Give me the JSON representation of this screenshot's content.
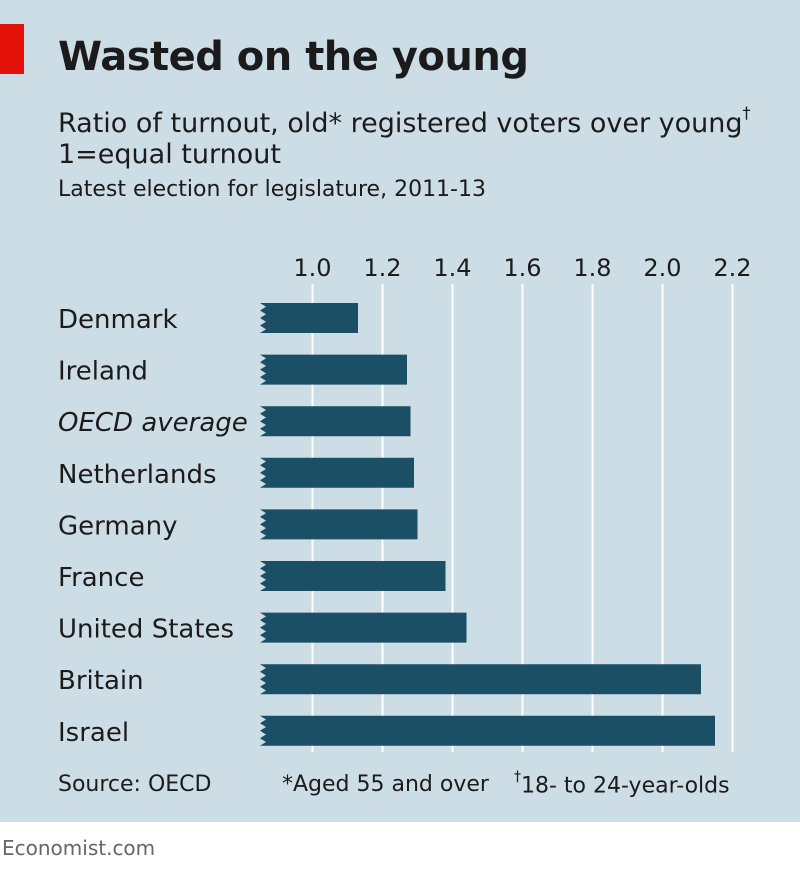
{
  "header": {
    "title": "Wasted on the young",
    "subtitle_line1": "Ratio of turnout, old* registered voters over young",
    "subtitle_dagger": "†",
    "subtitle_line2": "1=equal turnout",
    "subtitle_line3": "Latest election for legislature, 2011-13"
  },
  "footer": {
    "source": "Source: OECD",
    "note1": "*Aged 55 and over",
    "note2_dagger": "†",
    "note2": "18- to 24-year-olds"
  },
  "brand": "Economist.com",
  "colors": {
    "background": "#cddde6",
    "bar": "#1b4f66",
    "accent": "#e3120b",
    "grid": "#ffffff"
  },
  "chart_data": {
    "type": "bar",
    "orientation": "horizontal",
    "categories": [
      "Denmark",
      "Ireland",
      "OECD average",
      "Netherlands",
      "Germany",
      "France",
      "United States",
      "Britain",
      "Israel"
    ],
    "italic_categories": [
      "OECD average"
    ],
    "values": [
      1.13,
      1.27,
      1.28,
      1.29,
      1.3,
      1.38,
      1.44,
      2.11,
      2.15
    ],
    "xticks": [
      "1.0",
      "1.2",
      "1.4",
      "1.6",
      "1.8",
      "2.0",
      "2.2"
    ],
    "xlim": [
      0.85,
      2.2
    ],
    "grid": true,
    "axis_position": "top",
    "title": "Wasted on the young",
    "xlabel": "",
    "ylabel": ""
  }
}
